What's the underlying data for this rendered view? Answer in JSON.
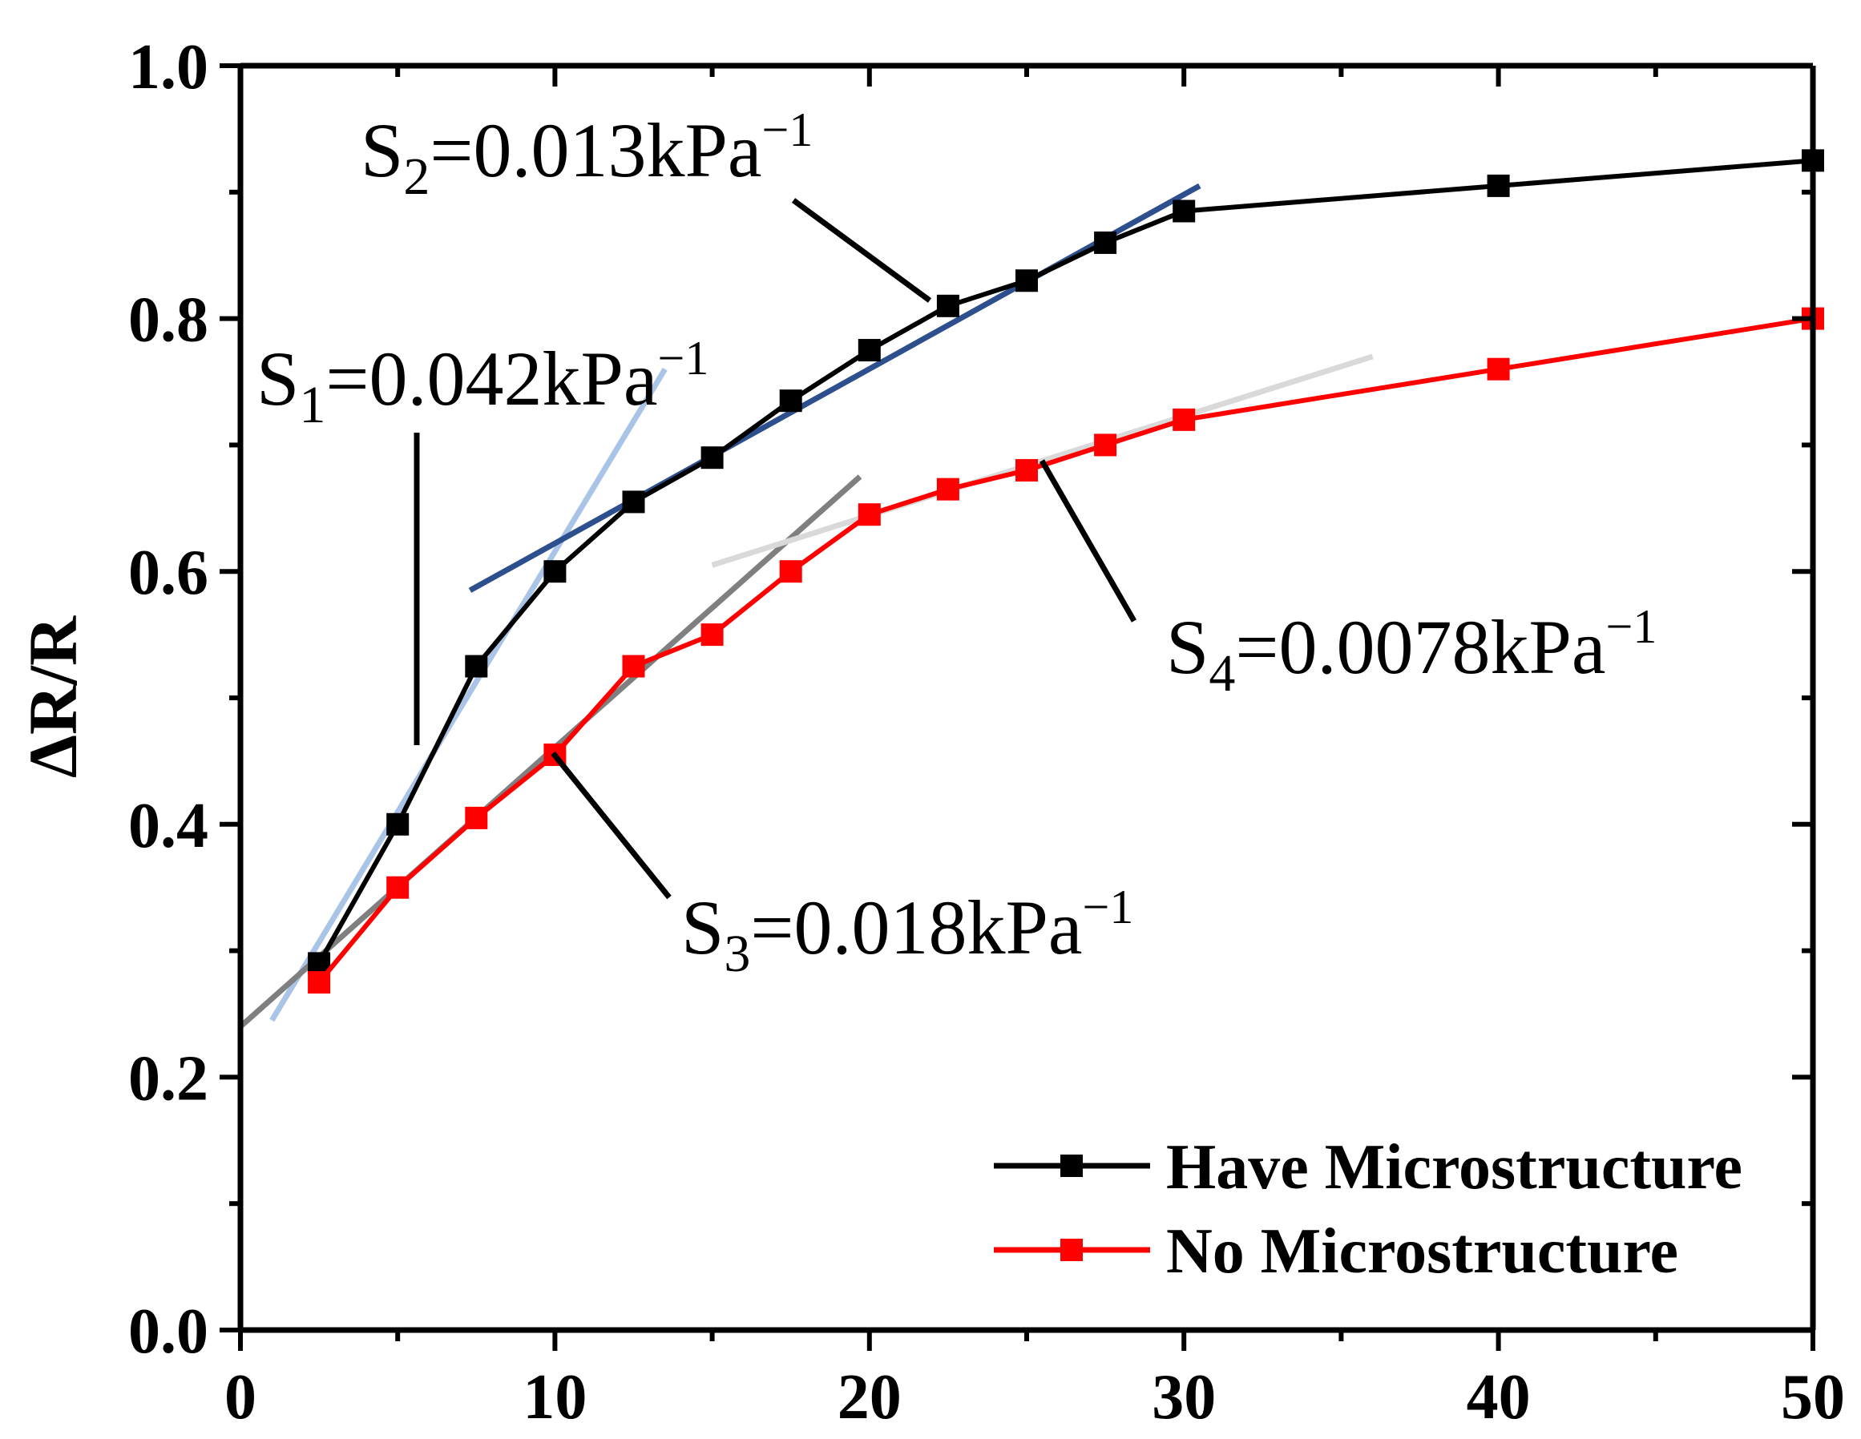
{
  "chart_data": {
    "type": "line",
    "title": "",
    "xlabel": "",
    "ylabel": "ΔR/R",
    "xlim": [
      0,
      50
    ],
    "ylim": [
      0,
      1.0
    ],
    "x_ticks": [
      0,
      10,
      20,
      30,
      40,
      50
    ],
    "y_ticks": [
      0.0,
      0.2,
      0.4,
      0.6,
      0.8,
      1.0
    ],
    "x_tick_labels": [
      "0",
      "10",
      "20",
      "30",
      "40",
      "50"
    ],
    "y_tick_labels": [
      "0.0",
      "0.2",
      "0.4",
      "0.6",
      "0.8",
      "1.0"
    ],
    "legend_position": "bottom-right",
    "series": [
      {
        "name": "Have Microstructure",
        "color": "#000000",
        "marker": "square",
        "x": [
          2.5,
          5,
          7.5,
          10,
          12.5,
          15,
          17.5,
          20,
          22.5,
          25,
          27.5,
          30,
          40,
          50
        ],
        "y": [
          0.29,
          0.4,
          0.525,
          0.6,
          0.655,
          0.69,
          0.735,
          0.775,
          0.81,
          0.83,
          0.86,
          0.885,
          0.905,
          0.925
        ]
      },
      {
        "name": "No Microstructure",
        "color": "#ff0000",
        "marker": "square",
        "x": [
          2.5,
          5,
          7.5,
          10,
          12.5,
          15,
          17.5,
          20,
          22.5,
          25,
          27.5,
          30,
          40,
          50
        ],
        "y": [
          0.275,
          0.35,
          0.405,
          0.455,
          0.525,
          0.55,
          0.6,
          0.645,
          0.665,
          0.68,
          0.7,
          0.72,
          0.76,
          0.8
        ]
      }
    ],
    "fit_lines": [
      {
        "name": "S1",
        "color": "#aac4e8",
        "x": [
          1,
          13.5
        ],
        "y": [
          0.245,
          0.76
        ]
      },
      {
        "name": "S2",
        "color": "#2e4f8e",
        "x": [
          7.3,
          30.5
        ],
        "y": [
          0.585,
          0.905
        ]
      },
      {
        "name": "S3",
        "color": "#7f7f7f",
        "x": [
          0,
          19.7
        ],
        "y": [
          0.24,
          0.675
        ]
      },
      {
        "name": "S4",
        "color": "#d9d9d9",
        "x": [
          15,
          36
        ],
        "y": [
          0.605,
          0.77
        ]
      }
    ],
    "annotations": [
      {
        "id": "s1",
        "sym": "S",
        "sub": "1",
        "value": "=0.042kPa",
        "sup": "−1"
      },
      {
        "id": "s2",
        "sym": "S",
        "sub": "2",
        "value": "=0.013kPa",
        "sup": "−1"
      },
      {
        "id": "s3",
        "sym": "S",
        "sub": "3",
        "value": "=0.018kPa",
        "sup": "−1"
      },
      {
        "id": "s4",
        "sym": "S",
        "sub": "4",
        "value": "=0.0078kPa",
        "sup": "−1"
      }
    ]
  }
}
